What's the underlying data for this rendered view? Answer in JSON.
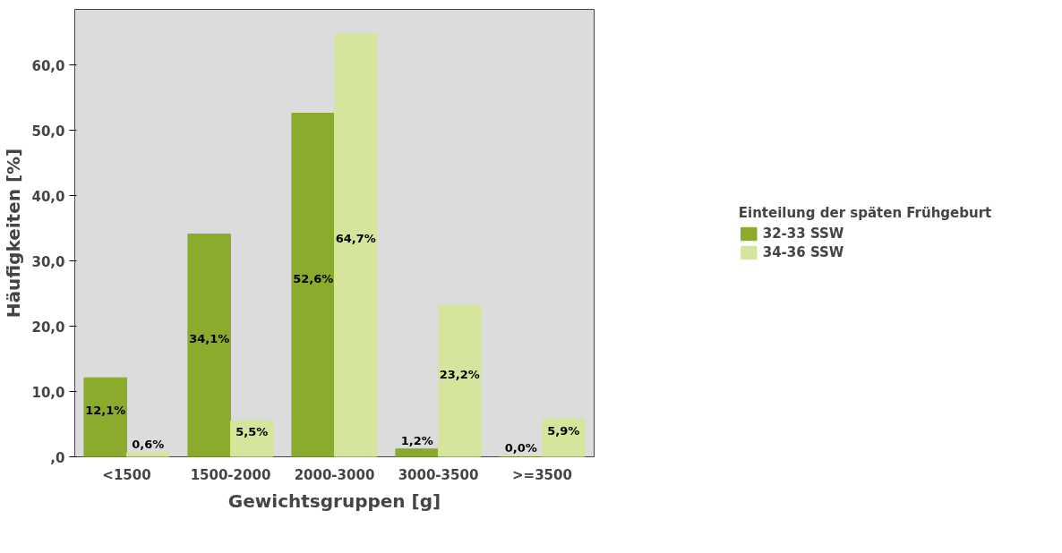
{
  "chart_data": {
    "type": "bar",
    "xlabel": "Gewichtsgruppen [g]",
    "ylabel": "Häufigkeiten [%]",
    "legend_title": "Einteilung der späten Frühgeburt",
    "categories": [
      "<1500",
      "1500-2000",
      "2000-3000",
      "3000-3500",
      ">=3500"
    ],
    "series": [
      {
        "name": "32-33 SSW",
        "color": "#8aab2b",
        "values": [
          12.1,
          34.1,
          52.6,
          1.2,
          0.0
        ],
        "value_labels": [
          "12,1%",
          "34,1%",
          "52,6%",
          "1,2%",
          "0,0%"
        ]
      },
      {
        "name": "34-36 SSW",
        "color": "#d5e69c",
        "values": [
          0.6,
          5.5,
          64.7,
          23.2,
          5.9
        ],
        "value_labels": [
          "0,6%",
          "5,5%",
          "64,7%",
          "23,2%",
          "5,9%"
        ]
      }
    ],
    "ylim": [
      0,
      68.5
    ],
    "yticks": [
      {
        "value": 0,
        "label": ",0"
      },
      {
        "value": 10,
        "label": "10,0"
      },
      {
        "value": 20,
        "label": "20,0"
      },
      {
        "value": 30,
        "label": "30,0"
      },
      {
        "value": 40,
        "label": "40,0"
      },
      {
        "value": 50,
        "label": "50,0"
      },
      {
        "value": 60,
        "label": "60,0"
      }
    ],
    "grid": false,
    "legend": "right"
  }
}
